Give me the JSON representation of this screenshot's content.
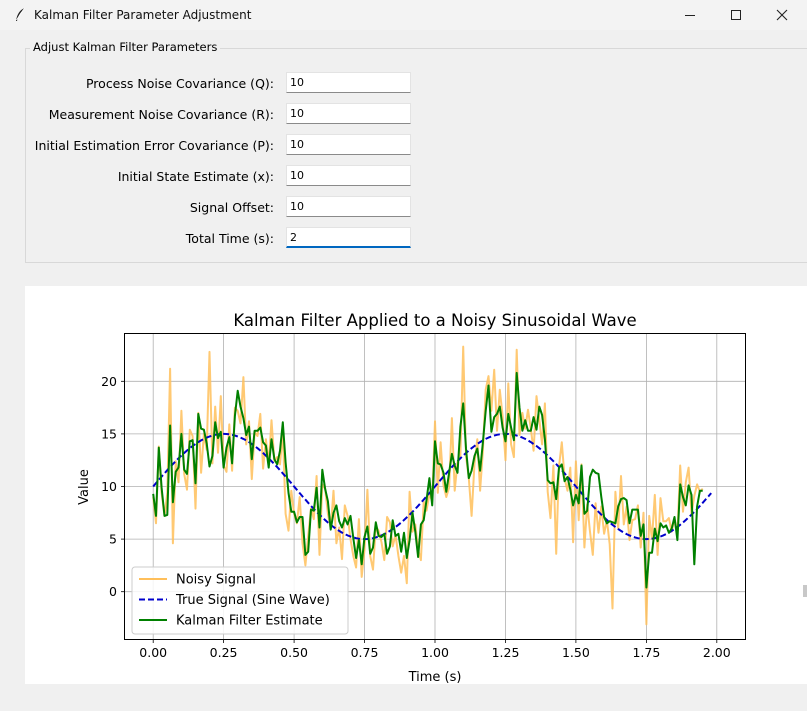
{
  "window": {
    "title": "Kalman Filter Parameter Adjustment",
    "icons": [
      "feather-icon",
      "minimize-icon",
      "maximize-icon",
      "close-icon"
    ]
  },
  "params": {
    "group_title": "Adjust Kalman Filter Parameters",
    "fields": [
      {
        "label": "Process Noise Covariance (Q):",
        "value": "10"
      },
      {
        "label": "Measurement Noise Covariance (R):",
        "value": "10"
      },
      {
        "label": "Initial Estimation Error Covariance (P):",
        "value": "10"
      },
      {
        "label": "Initial State Estimate (x):",
        "value": "10"
      },
      {
        "label": "Signal Offset:",
        "value": "10"
      },
      {
        "label": "Total Time (s):",
        "value": "2"
      }
    ]
  },
  "chart_data": {
    "type": "line",
    "title": "Kalman Filter Applied to a Noisy Sinusoidal Wave",
    "xlabel": "Time (s)",
    "ylabel": "Value",
    "xlim": [
      -0.1,
      2.1
    ],
    "ylim": [
      -4.5,
      24.5
    ],
    "xticks": [
      0.0,
      0.25,
      0.5,
      0.75,
      1.0,
      1.25,
      1.5,
      1.75,
      2.0
    ],
    "xtick_labels": [
      "0.00",
      "0.25",
      "0.50",
      "0.75",
      "1.00",
      "1.25",
      "1.50",
      "1.75",
      "2.00"
    ],
    "yticks": [
      0,
      5,
      10,
      15,
      20
    ],
    "ytick_labels": [
      "0",
      "5",
      "10",
      "15",
      "20"
    ],
    "grid": true,
    "legend_position": "lower-left",
    "series": [
      {
        "name": "Noisy Signal",
        "color": "#ffbf5a",
        "style": "solid",
        "x_start": 0.0,
        "x_step": 0.01,
        "values": [
          9.0,
          6.5,
          13.8,
          9.4,
          7.2,
          9.4,
          21.2,
          4.6,
          12.4,
          10.4,
          17.2,
          11.2,
          9.7,
          15.4,
          14.8,
          7.9,
          17.0,
          11.3,
          15.0,
          13.5,
          22.8,
          12.2,
          17.6,
          13.2,
          18.6,
          12.0,
          11.4,
          15.9,
          11.5,
          17.5,
          17.2,
          16.0,
          20.4,
          14.0,
          16.2,
          10.7,
          15.2,
          14.8,
          16.9,
          11.7,
          14.5,
          12.1,
          16.3,
          12.4,
          12.8,
          12.1,
          15.3,
          7.4,
          5.8,
          9.6,
          7.4,
          6.5,
          9.0,
          4.6,
          2.5,
          5.3,
          7.9,
          6.9,
          11.0,
          3.5,
          10.2,
          9.8,
          7.4,
          6.0,
          9.6,
          4.6,
          6.1,
          3.1,
          8.2,
          7.2,
          5.0,
          3.4,
          2.3,
          6.9,
          1.4,
          4.0,
          9.7,
          3.4,
          2.1,
          6.2,
          5.8,
          4.7,
          3.0,
          7.1,
          6.6,
          4.3,
          5.4,
          3.4,
          1.8,
          3.4,
          0.8,
          9.5,
          5.7,
          6.4,
          4.0,
          3.0,
          8.6,
          7.7,
          9.3,
          8.6,
          16.2,
          9.4,
          14.2,
          10.1,
          9.0,
          9.9,
          16.5,
          9.6,
          12.3,
          12.9,
          23.3,
          12.9,
          10.8,
          7.2,
          12.2,
          14.5,
          9.6,
          13.4,
          19.2,
          20.5,
          17.2,
          21.1,
          15.3,
          19.2,
          16.7,
          12.5,
          19.8,
          14.0,
          12.8,
          23.0,
          14.9,
          17.0,
          15.5,
          17.3,
          15.5,
          13.4,
          18.6,
          16.4,
          14.0,
          17.9,
          9.5,
          7.0,
          12.0,
          3.6,
          11.9,
          14.2,
          10.8,
          9.6,
          11.8,
          4.7,
          12.4,
          6.8,
          12.1,
          4.2,
          8.3,
          5.7,
          3.5,
          8.4,
          5.6,
          8.1,
          5.5,
          6.8,
          4.5,
          -1.6,
          9.5,
          6.0,
          11.0,
          6.4,
          8.1,
          4.9,
          6.8,
          6.9,
          8.2,
          4.2,
          7.5,
          -3.1,
          7.2,
          5.0,
          9.2,
          3.5,
          8.9,
          6.7,
          6.7,
          7.0,
          5.7,
          6.9,
          5.5,
          12.0,
          7.6,
          10.4,
          11.8,
          7.4,
          9.1,
          10.2,
          9.5,
          9.8
        ]
      },
      {
        "name": "True Signal (Sine Wave)",
        "color": "#0000cc",
        "style": "dashed",
        "formula": "10 + 5*sin(2*pi*t)"
      },
      {
        "name": "Kalman Filter Estimate",
        "color": "#008000",
        "style": "solid",
        "x_start": 0.0,
        "x_step": 0.01,
        "values": [
          9.3,
          7.2,
          13.7,
          9.9,
          7.2,
          7.3,
          15.8,
          8.5,
          11.4,
          11.8,
          15.0,
          11.6,
          11.2,
          14.3,
          14.4,
          10.3,
          16.9,
          15.5,
          15.4,
          14.1,
          11.9,
          12.9,
          16.1,
          14.6,
          15.2,
          11.8,
          13.7,
          14.7,
          12.2,
          16.7,
          19.1,
          17.6,
          16.5,
          14.9,
          15.7,
          12.6,
          15.3,
          15.3,
          15.6,
          14.2,
          13.9,
          11.8,
          14.5,
          12.6,
          12.1,
          13.4,
          16.1,
          12.3,
          9.4,
          7.6,
          7.6,
          6.6,
          7.1,
          7.1,
          3.5,
          3.8,
          7.8,
          7.7,
          9.9,
          6.1,
          11.6,
          9.8,
          8.6,
          5.9,
          7.5,
          8.2,
          6.7,
          6.1,
          7.0,
          6.4,
          7.2,
          5.1,
          3.2,
          4.9,
          2.6,
          5.2,
          6.2,
          3.6,
          4.2,
          6.6,
          5.3,
          5.2,
          5.5,
          3.6,
          4.3,
          6.8,
          5.3,
          5.5,
          3.8,
          5.6,
          3.2,
          4.9,
          7.5,
          5.7,
          3.3,
          6.4,
          6.8,
          8.7,
          10.8,
          8.2,
          14.3,
          12.2,
          12.1,
          11.3,
          9.5,
          11.3,
          13.1,
          12.0,
          11.3,
          15.7,
          17.9,
          13.6,
          10.8,
          11.5,
          12.9,
          13.6,
          11.5,
          14.2,
          17.2,
          19.6,
          15.2,
          16.6,
          16.9,
          17.6,
          15.6,
          14.3,
          16.9,
          15.6,
          14.4,
          20.8,
          17.5,
          15.3,
          16.3,
          15.3,
          15.3,
          16.6,
          15.4,
          17.6,
          16.8,
          14.5,
          10.6,
          10.3,
          10.4,
          8.8,
          11.8,
          12.1,
          10.5,
          10.9,
          9.7,
          8.2,
          9.2,
          8.4,
          12.0,
          7.4,
          7.7,
          10.9,
          11.6,
          11.3,
          11.2,
          9.0,
          7.1,
          6.5,
          6.7,
          6.6,
          6.5,
          8.1,
          8.8,
          8.9,
          8.7,
          6.5,
          7.8,
          7.8,
          7.8,
          5.3,
          6.4,
          0.4,
          3.7,
          3.7,
          6.0,
          4.8,
          6.5,
          6.1,
          6.3,
          5.6,
          6.0,
          7.1,
          4.9,
          10.2,
          9.0,
          8.2,
          10.1,
          9.2,
          2.6,
          8.1,
          9.6,
          9.6
        ]
      }
    ]
  }
}
